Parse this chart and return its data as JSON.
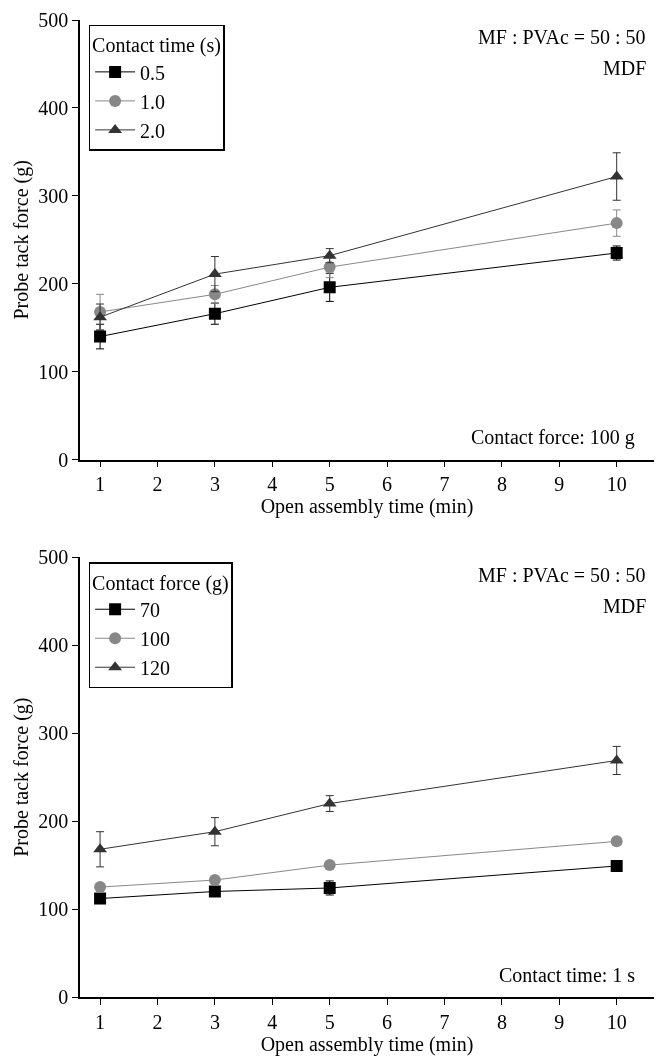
{
  "chart_data": [
    {
      "type": "line",
      "xlabel": "Open assembly time (min)",
      "ylabel": "Probe tack force (g)",
      "legend_title": "Contact time (s)",
      "legend": "top left",
      "line_style": "solid",
      "x": [
        1,
        3,
        5,
        10
      ],
      "xlim": [
        0.65,
        10.65
      ],
      "xticks": [
        1,
        2,
        3,
        4,
        5,
        6,
        7,
        8,
        9,
        10
      ],
      "ylim": [
        0,
        500
      ],
      "yticks": [
        0,
        100,
        200,
        300,
        400,
        500
      ],
      "annotations": [
        "MF : PVAc = 50 : 50",
        "MDF",
        "Contact force: 100 g"
      ],
      "series": [
        {
          "name": "0.5",
          "color": "#000000",
          "marker": "square",
          "values": [
            140,
            166,
            196,
            235
          ],
          "errors": [
            14,
            12,
            16,
            8
          ]
        },
        {
          "name": "1.0",
          "color": "#888888",
          "marker": "circle",
          "values": [
            168,
            188,
            219,
            269
          ],
          "errors": [
            20,
            10,
            12,
            15
          ]
        },
        {
          "name": "2.0",
          "color": "#333333",
          "marker": "triangle",
          "values": [
            162,
            211,
            232,
            322
          ],
          "errors": [
            15,
            20,
            8,
            27
          ]
        }
      ]
    },
    {
      "type": "line",
      "xlabel": "Open assembly time (min)",
      "ylabel": "Probe tack force (g)",
      "legend_title": "Contact force (g)",
      "legend": "top left",
      "line_style": "solid",
      "x": [
        1,
        3,
        5,
        10
      ],
      "xlim": [
        0.65,
        10.65
      ],
      "xticks": [
        1,
        2,
        3,
        4,
        5,
        6,
        7,
        8,
        9,
        10
      ],
      "ylim": [
        0,
        500
      ],
      "yticks": [
        0,
        100,
        200,
        300,
        400,
        500
      ],
      "annotations": [
        "MF : PVAc = 50 : 50",
        "MDF",
        "Contact time: 1 s"
      ],
      "series": [
        {
          "name": "70",
          "color": "#000000",
          "marker": "square",
          "values": [
            112,
            120,
            124,
            149
          ],
          "errors": [
            null,
            null,
            8,
            null
          ]
        },
        {
          "name": "100",
          "color": "#888888",
          "marker": "circle",
          "values": [
            125,
            133,
            150,
            177
          ],
          "errors": [
            null,
            null,
            null,
            4
          ]
        },
        {
          "name": "120",
          "color": "#333333",
          "marker": "triangle",
          "values": [
            168,
            188,
            220,
            269
          ],
          "errors": [
            20,
            16,
            9,
            16
          ]
        }
      ]
    }
  ]
}
